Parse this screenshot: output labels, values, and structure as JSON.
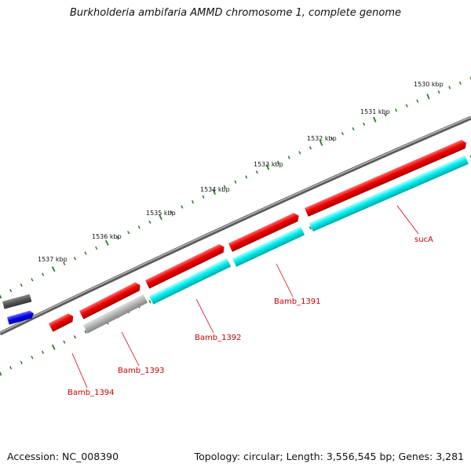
{
  "title": "Burkholderia ambifaria AMMD chromosome 1, complete genome",
  "footer": {
    "accession": "Accession: NC_008390",
    "summary": "Topology: circular; Length: 3,556,545 bp; Genes: 3,281"
  },
  "colors": {
    "forward_gene": "#e00000",
    "reverse_gene": "#00e0e0",
    "backbone": "#808080",
    "tick": "#2a7a2a",
    "gene_label": "#cc0000",
    "other_gene_grey": "#a0a0a0",
    "other_gene_dark": "#555555",
    "other_gene_blue": "#0000ee"
  },
  "scale_labels": [
    "1530 kbp",
    "1531 kbp",
    "1532 kbp",
    "1533 kbp",
    "1534 kbp",
    "1535 kbp",
    "1536 kbp",
    "1537 kbp"
  ],
  "gene_labels": [
    "sucA",
    "Bamb_1391",
    "Bamb_1392",
    "Bamb_1393",
    "Bamb_1394"
  ]
}
